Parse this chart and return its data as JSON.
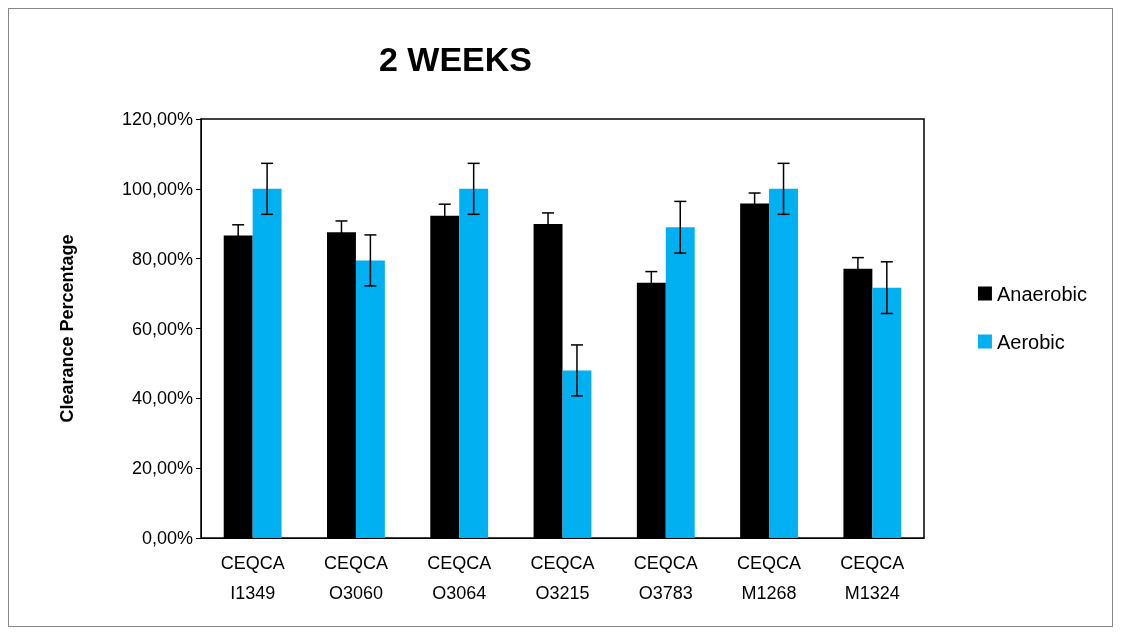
{
  "chart_data": {
    "type": "bar",
    "title": "2 WEEKS",
    "ylabel": "Clearance Percentage",
    "categories": [
      "CEQCA\nI1349",
      "CEQCA\nO3060",
      "CEQCA\nO3064",
      "CEQCA\nO3215",
      "CEQCA\nO3783",
      "CEQCA\nM1268",
      "CEQCA\nM1324"
    ],
    "series": [
      {
        "name": "Anaerobic",
        "color": "#000000",
        "values": [
          86.6,
          87.6,
          92.3,
          89.9,
          73.1,
          95.8,
          77.1
        ],
        "errors": [
          3.1,
          3.2,
          3.3,
          3.2,
          3.2,
          3,
          3.2
        ]
      },
      {
        "name": "Aerobic",
        "color": "#00b0f0",
        "values": [
          100,
          79.5,
          100,
          48,
          89,
          100,
          71.7
        ],
        "errors": [
          7.3,
          7.3,
          7.3,
          7.3,
          7.4,
          7.3,
          7.4
        ]
      }
    ],
    "ylim": [
      0,
      120
    ],
    "yticks": [
      {
        "value": 0,
        "label": "0,00%"
      },
      {
        "value": 20,
        "label": "20,00%"
      },
      {
        "value": 40,
        "label": "40,00%"
      },
      {
        "value": 60,
        "label": "60,00%"
      },
      {
        "value": 80,
        "label": "80,00%"
      },
      {
        "value": 100,
        "label": "100,00%"
      },
      {
        "value": 120,
        "label": "120,00%"
      }
    ],
    "grid": false,
    "legend": "right"
  }
}
